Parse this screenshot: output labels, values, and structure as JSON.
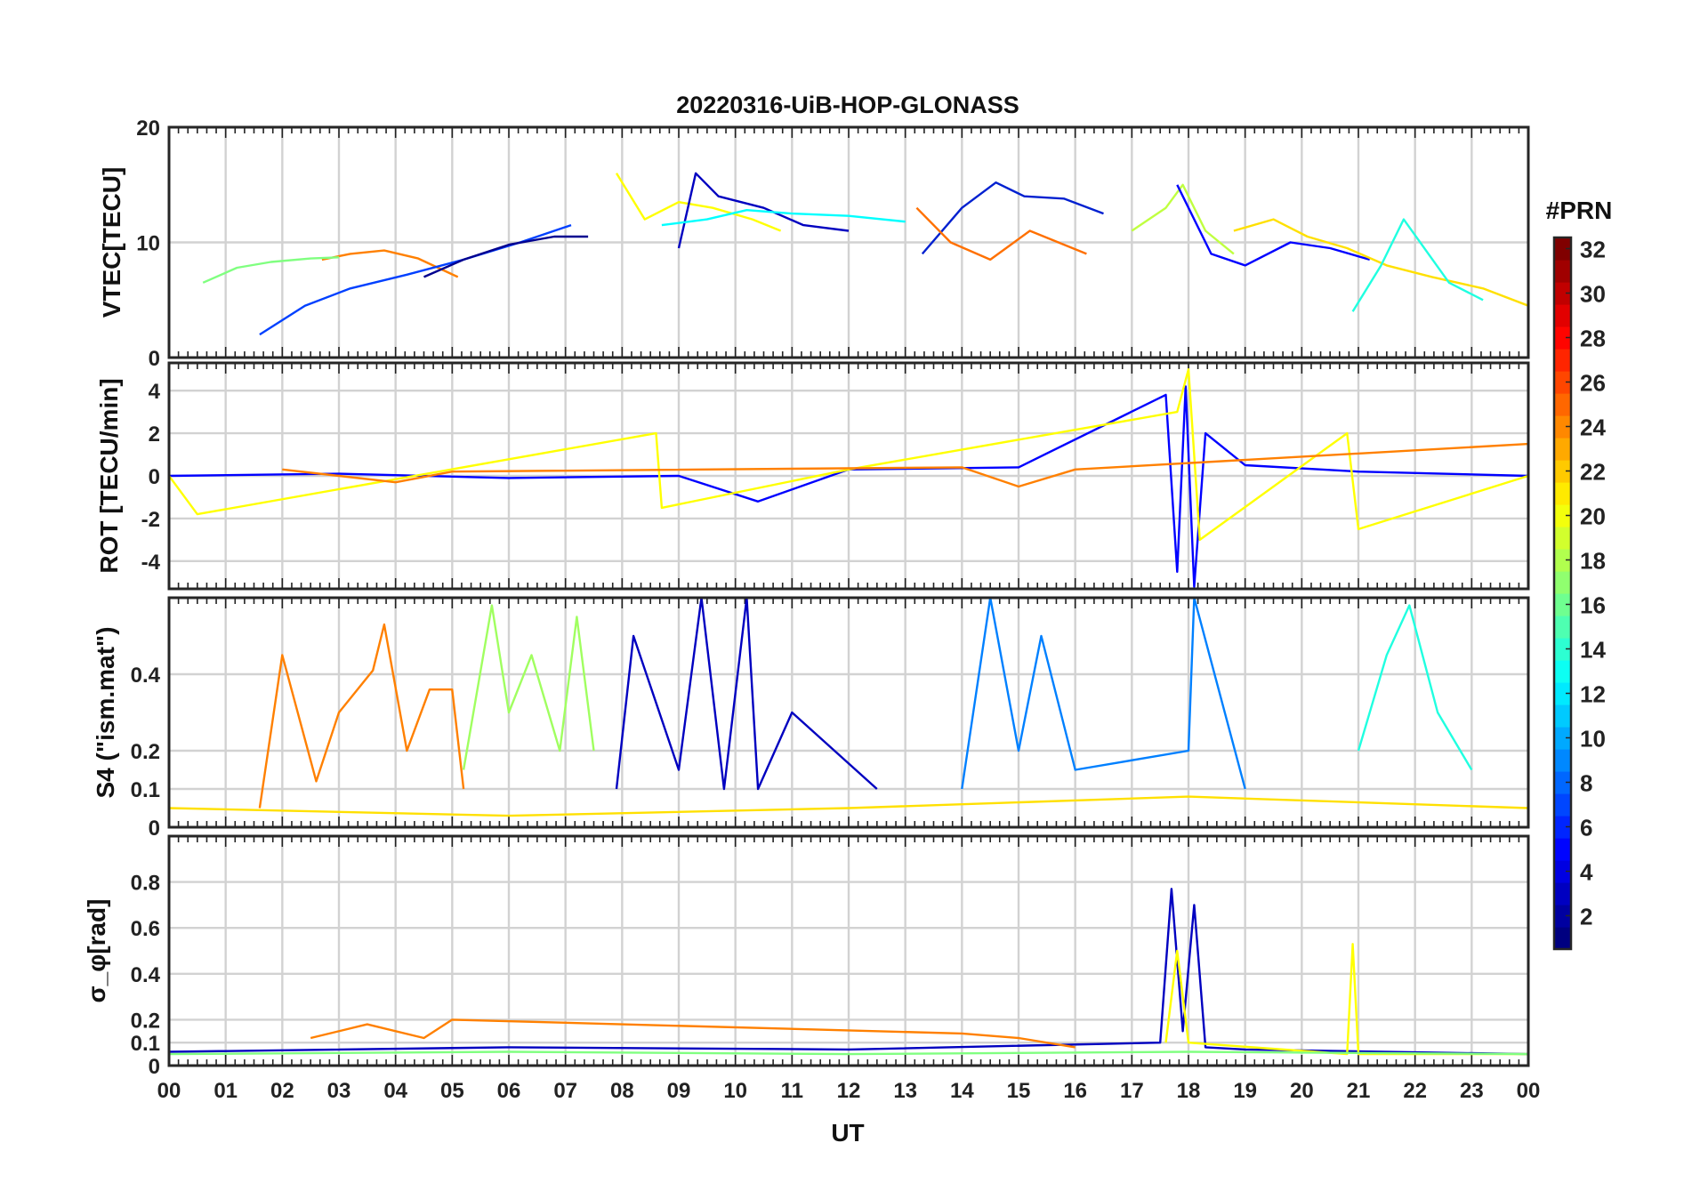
{
  "figure": {
    "title": "20220316-UiB-HOP-GLONASS",
    "xlabel": "UT",
    "colorbar_label": "#PRN"
  },
  "x_ticks": [
    "00",
    "01",
    "02",
    "03",
    "04",
    "05",
    "06",
    "07",
    "08",
    "09",
    "10",
    "11",
    "12",
    "13",
    "14",
    "15",
    "16",
    "17",
    "18",
    "19",
    "20",
    "21",
    "22",
    "23",
    "00"
  ],
  "colorbar": {
    "range": [
      1,
      32
    ],
    "ticks": [
      "2",
      "4",
      "6",
      "8",
      "10",
      "12",
      "14",
      "16",
      "18",
      "20",
      "22",
      "24",
      "26",
      "28",
      "30",
      "32"
    ],
    "colormap": "jet"
  },
  "chart_data": [
    {
      "type": "line",
      "panel": "VTEC",
      "ylabel": "VTEC[TECU]",
      "ylim": [
        0,
        20
      ],
      "yticks": [
        "0",
        "10",
        "20"
      ],
      "xlim_hours": [
        0,
        24
      ],
      "grid": true,
      "series": [
        {
          "prn": 22,
          "color": "#ff8000",
          "x": [
            2.7,
            3.2,
            3.8,
            4.4,
            5.1
          ],
          "y": [
            8.5,
            9.0,
            9.3,
            8.6,
            7.0
          ]
        },
        {
          "prn": 17,
          "color": "#80ff80",
          "x": [
            0.6,
            1.2,
            1.8,
            2.5,
            3.0
          ],
          "y": [
            6.5,
            7.8,
            8.3,
            8.6,
            8.7
          ]
        },
        {
          "prn": 6,
          "color": "#0040ff",
          "x": [
            1.6,
            2.4,
            3.2,
            4.2,
            5.2,
            6.2,
            7.1
          ],
          "y": [
            2.0,
            4.5,
            6.0,
            7.2,
            8.5,
            10.0,
            11.5
          ]
        },
        {
          "prn": 2,
          "color": "#00008f",
          "x": [
            4.5,
            5.2,
            6.0,
            6.8,
            7.4
          ],
          "y": [
            7.0,
            8.5,
            9.8,
            10.5,
            10.5
          ]
        },
        {
          "prn": 20,
          "color": "#ffff00",
          "x": [
            7.9,
            8.4,
            9.0,
            9.6,
            10.3,
            10.8
          ],
          "y": [
            16.0,
            12.0,
            13.5,
            13.0,
            12.0,
            11.0
          ]
        },
        {
          "prn": 3,
          "color": "#0000c0",
          "x": [
            9.0,
            9.3,
            9.7,
            10.5,
            11.2,
            12.0
          ],
          "y": [
            9.5,
            16.0,
            14.0,
            13.0,
            11.5,
            11.0
          ]
        },
        {
          "prn": 14,
          "color": "#00ffff",
          "x": [
            8.7,
            9.5,
            10.2,
            11.0,
            12.0,
            13.0
          ],
          "y": [
            11.5,
            12.0,
            12.8,
            12.5,
            12.3,
            11.8
          ]
        },
        {
          "prn": 5,
          "color": "#0020d0",
          "x": [
            13.3,
            14.0,
            14.6,
            15.1,
            15.8,
            16.5
          ],
          "y": [
            9.0,
            13.0,
            15.2,
            14.0,
            13.8,
            12.5
          ]
        },
        {
          "prn": 23,
          "color": "#ff7000",
          "x": [
            13.2,
            13.8,
            14.5,
            15.2,
            16.2
          ],
          "y": [
            13.0,
            10.0,
            8.5,
            11.0,
            9.0
          ]
        },
        {
          "prn": 19,
          "color": "#c0ff40",
          "x": [
            17.0,
            17.6,
            17.9,
            18.3,
            18.8
          ],
          "y": [
            11.0,
            13.0,
            15.0,
            11.0,
            9.0
          ]
        },
        {
          "prn": 4,
          "color": "#0000ff",
          "x": [
            17.8,
            18.4,
            19.0,
            19.8,
            20.5,
            21.2
          ],
          "y": [
            15.0,
            9.0,
            8.0,
            10.0,
            9.5,
            8.5
          ]
        },
        {
          "prn": 21,
          "color": "#ffe000",
          "x": [
            18.8,
            19.5,
            20.1,
            20.8,
            21.5,
            22.3,
            23.2,
            24.0
          ],
          "y": [
            11.0,
            12.0,
            10.5,
            9.5,
            8.0,
            7.0,
            6.0,
            4.5
          ]
        },
        {
          "prn": 13,
          "color": "#20ffe0",
          "x": [
            20.9,
            21.4,
            21.8,
            22.6,
            23.2
          ],
          "y": [
            4.0,
            8.0,
            12.0,
            6.5,
            5.0
          ]
        }
      ]
    },
    {
      "type": "line",
      "panel": "ROT",
      "ylabel": "ROT [TECU/min]",
      "ylim": [
        -5.3,
        5.3
      ],
      "yticks": [
        "-4",
        "-2",
        "0",
        "2",
        "4"
      ],
      "xlim_hours": [
        0,
        24
      ],
      "grid": true,
      "series": [
        {
          "prn": 4,
          "color": "#0000ff",
          "x": [
            0.0,
            3.0,
            6.0,
            9.0,
            10.4,
            12.0,
            15.0,
            17.6,
            17.8,
            17.95,
            18.1,
            18.3,
            19.0,
            21.0,
            24.0
          ],
          "y": [
            0.0,
            0.1,
            -0.1,
            0.0,
            -1.2,
            0.3,
            0.4,
            3.8,
            -4.5,
            4.2,
            -5.2,
            2.0,
            0.5,
            0.2,
            0.0
          ]
        },
        {
          "prn": 20,
          "color": "#ffff00",
          "x": [
            0.0,
            0.5,
            8.6,
            8.7,
            12.0,
            17.8,
            18.0,
            18.2,
            20.8,
            21.0,
            24.0
          ],
          "y": [
            0.0,
            -1.8,
            2.0,
            -1.5,
            0.3,
            3.0,
            5.0,
            -3.0,
            2.0,
            -2.5,
            0.0
          ]
        },
        {
          "prn": 22,
          "color": "#ff8000",
          "x": [
            2.0,
            4.0,
            5.0,
            14.0,
            15.0,
            16.0,
            24.0
          ],
          "y": [
            0.3,
            -0.3,
            0.2,
            0.4,
            -0.5,
            0.3,
            1.5
          ]
        }
      ]
    },
    {
      "type": "line",
      "panel": "S4",
      "ylabel": "S4 (\"ism.mat\")",
      "ylim": [
        0,
        0.6
      ],
      "yticks": [
        "0",
        "0.1",
        "0.2",
        "0.4"
      ],
      "xlim_hours": [
        0,
        24
      ],
      "grid": true,
      "series": [
        {
          "prn": 22,
          "color": "#ff8000",
          "x": [
            1.6,
            2.0,
            2.6,
            3.0,
            3.6,
            3.8,
            4.2,
            4.6,
            5.0,
            5.2
          ],
          "y": [
            0.05,
            0.45,
            0.12,
            0.3,
            0.41,
            0.53,
            0.2,
            0.36,
            0.36,
            0.1
          ]
        },
        {
          "prn": 17,
          "color": "#a0ff60",
          "x": [
            5.2,
            5.7,
            6.0,
            6.4,
            6.9,
            7.2,
            7.5
          ],
          "y": [
            0.15,
            0.58,
            0.3,
            0.45,
            0.2,
            0.55,
            0.2
          ]
        },
        {
          "prn": 3,
          "color": "#0000c0",
          "x": [
            7.9,
            8.2,
            9.0,
            9.4,
            9.8,
            10.2,
            10.4,
            11.0,
            12.5
          ],
          "y": [
            0.1,
            0.5,
            0.15,
            0.6,
            0.1,
            0.6,
            0.1,
            0.3,
            0.1
          ]
        },
        {
          "prn": 8,
          "color": "#0080ff",
          "x": [
            14.0,
            14.5,
            15.0,
            15.4,
            16.0,
            18.0,
            18.1,
            19.0
          ],
          "y": [
            0.1,
            0.6,
            0.2,
            0.5,
            0.15,
            0.2,
            0.6,
            0.1
          ]
        },
        {
          "prn": 13,
          "color": "#20ffe0",
          "x": [
            21.0,
            21.5,
            21.9,
            22.4,
            23.0
          ],
          "y": [
            0.2,
            0.45,
            0.58,
            0.3,
            0.15
          ]
        },
        {
          "prn": 21,
          "color": "#ffe000",
          "x": [
            0.0,
            6.0,
            12.0,
            18.0,
            24.0
          ],
          "y": [
            0.05,
            0.03,
            0.05,
            0.08,
            0.05
          ]
        }
      ]
    },
    {
      "type": "line",
      "panel": "sigma_phi",
      "ylabel": "σ_φ[rad]",
      "ylim": [
        0,
        1.0
      ],
      "yticks": [
        "0",
        "0.1",
        "0.2",
        "0.4",
        "0.6",
        "0.8"
      ],
      "xlim_hours": [
        0,
        24
      ],
      "grid": true,
      "series": [
        {
          "prn": 3,
          "color": "#0000c0",
          "x": [
            0.0,
            6.0,
            12.0,
            17.5,
            17.7,
            17.9,
            18.1,
            18.3,
            19.0,
            24.0
          ],
          "y": [
            0.06,
            0.08,
            0.07,
            0.1,
            0.77,
            0.15,
            0.7,
            0.08,
            0.07,
            0.05
          ]
        },
        {
          "prn": 22,
          "color": "#ff8000",
          "x": [
            2.5,
            3.5,
            4.5,
            5.0,
            14.0,
            15.0,
            16.0
          ],
          "y": [
            0.12,
            0.18,
            0.12,
            0.2,
            0.14,
            0.12,
            0.08
          ]
        },
        {
          "prn": 20,
          "color": "#ffff00",
          "x": [
            17.6,
            17.8,
            18.0,
            20.8,
            20.9,
            21.0,
            24.0
          ],
          "y": [
            0.1,
            0.5,
            0.1,
            0.05,
            0.53,
            0.05,
            0.05
          ]
        },
        {
          "prn": 17,
          "color": "#80ff80",
          "x": [
            0.0,
            6.0,
            12.0,
            18.0,
            24.0
          ],
          "y": [
            0.05,
            0.06,
            0.05,
            0.06,
            0.05
          ]
        }
      ]
    }
  ]
}
